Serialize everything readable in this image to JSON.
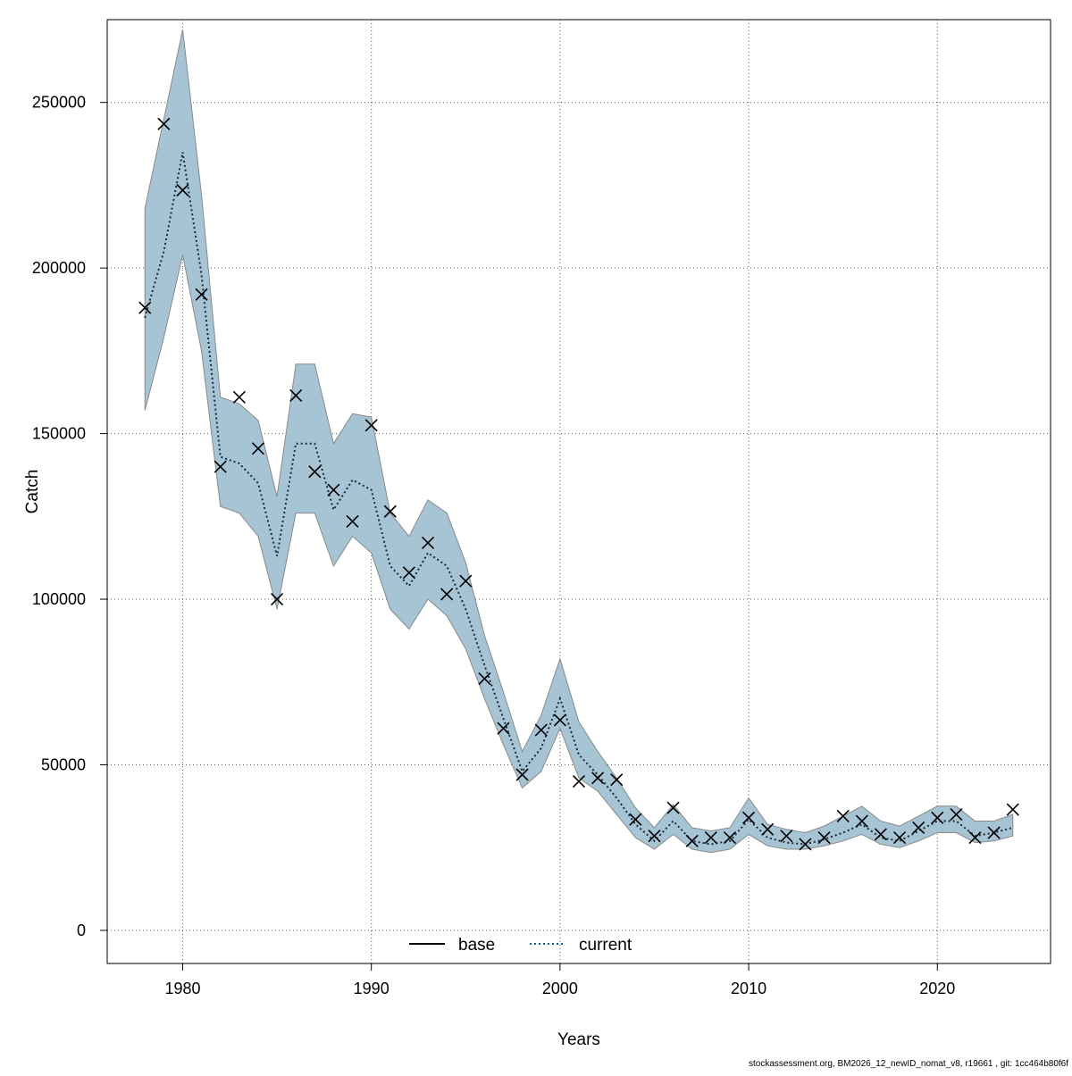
{
  "chart_data": {
    "type": "line",
    "xlabel": "Years",
    "ylabel": "Catch",
    "xlim": [
      1976,
      2026
    ],
    "ylim": [
      -10000,
      275000
    ],
    "xticks": [
      1980,
      1990,
      2000,
      2010,
      2020
    ],
    "yticks": [
      0,
      50000,
      100000,
      150000,
      200000,
      250000
    ],
    "grid": true,
    "legend_position": "bottom-center",
    "legend": [
      {
        "name": "base",
        "style": "solid",
        "color": "#000000"
      },
      {
        "name": "current",
        "style": "dotted",
        "color": "#0b5f8a"
      }
    ],
    "colors": {
      "band": "#a6c4d4",
      "band_edge": "#8a8a8a",
      "current_line": "#1a2a3a",
      "marker": "#000000"
    },
    "x": [
      1978,
      1979,
      1980,
      1981,
      1982,
      1983,
      1984,
      1985,
      1986,
      1987,
      1988,
      1989,
      1990,
      1991,
      1992,
      1993,
      1994,
      1995,
      1996,
      1997,
      1998,
      1999,
      2000,
      2001,
      2002,
      2003,
      2004,
      2005,
      2006,
      2007,
      2008,
      2009,
      2010,
      2011,
      2012,
      2013,
      2014,
      2015,
      2016,
      2017,
      2018,
      2019,
      2020,
      2021,
      2022,
      2023,
      2024
    ],
    "series": [
      {
        "name": "current",
        "kind": "estimate",
        "values": [
          185000,
          205000,
          235000,
          198000,
          143000,
          141000,
          135000,
          113000,
          147000,
          147000,
          127000,
          136000,
          133000,
          110000,
          104000,
          114000,
          110000,
          97000,
          80000,
          64000,
          48000,
          55000,
          70000,
          53000,
          47000,
          40000,
          32000,
          27000,
          33000,
          27000,
          26000,
          27000,
          33500,
          28000,
          26500,
          26000,
          27500,
          29500,
          32000,
          28000,
          27000,
          30000,
          33000,
          33000,
          28500,
          29500,
          31000
        ]
      },
      {
        "name": "upper",
        "kind": "confidence-upper",
        "values": [
          218000,
          245000,
          272000,
          222000,
          161000,
          159000,
          154000,
          131000,
          171000,
          171000,
          147000,
          156000,
          155000,
          126000,
          119000,
          130000,
          126000,
          111000,
          89000,
          72000,
          54000,
          65000,
          82000,
          63000,
          54000,
          46000,
          37000,
          31000,
          38000,
          31000,
          30000,
          31000,
          40000,
          32000,
          30500,
          29500,
          31500,
          34500,
          37500,
          33000,
          31500,
          34500,
          37500,
          37500,
          33000,
          33000,
          35000
        ]
      },
      {
        "name": "lower",
        "kind": "confidence-lower",
        "values": [
          157000,
          179000,
          204000,
          175000,
          128000,
          126000,
          119000,
          97000,
          126000,
          126000,
          110000,
          119000,
          114000,
          97000,
          91000,
          100000,
          95000,
          85000,
          70000,
          56000,
          43000,
          48000,
          61000,
          46000,
          42000,
          35000,
          28000,
          24500,
          29000,
          24500,
          23500,
          24500,
          29000,
          25500,
          24500,
          24500,
          25500,
          27000,
          29000,
          26000,
          25000,
          27000,
          29500,
          29500,
          26500,
          27000,
          28500
        ]
      },
      {
        "name": "observed",
        "kind": "markers",
        "values": [
          188000,
          243500,
          223500,
          192000,
          140000,
          161000,
          145500,
          100000,
          161500,
          138500,
          133000,
          123500,
          152500,
          126500,
          108000,
          117000,
          101500,
          105500,
          76000,
          61000,
          47000,
          60500,
          63500,
          45000,
          46000,
          45500,
          33500,
          28500,
          37000,
          27000,
          28000,
          28000,
          34000,
          30500,
          28500,
          26000,
          28000,
          34500,
          33000,
          29000,
          28000,
          31000,
          34000,
          35000,
          28000,
          29500,
          36500
        ]
      }
    ]
  },
  "footer": "stockassessment.org, BM2026_12_newID_nomat_v8, r19661 , git: 1cc464b80f6f"
}
